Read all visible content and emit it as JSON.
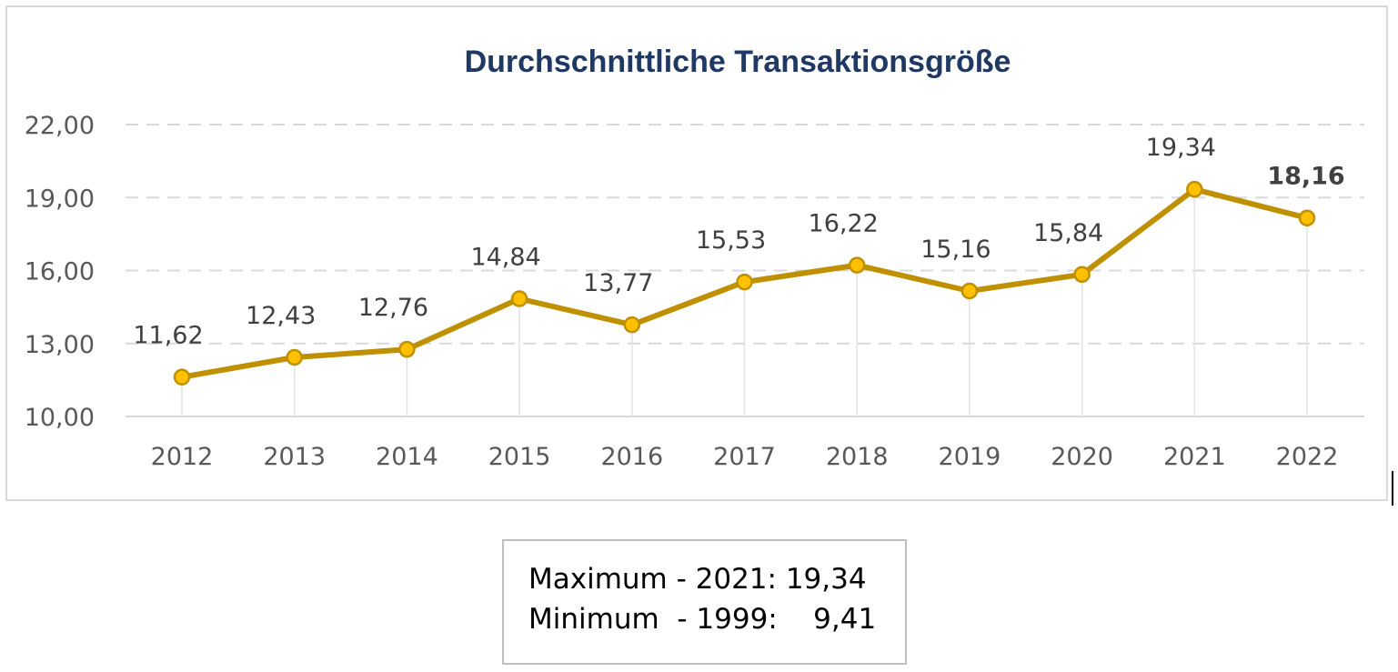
{
  "chart_data": {
    "type": "line",
    "title": "Durchschnittliche Transaktionsgröße",
    "categories": [
      "2012",
      "2013",
      "2014",
      "2015",
      "2016",
      "2017",
      "2018",
      "2019",
      "2020",
      "2021",
      "2022"
    ],
    "values": [
      11.62,
      12.43,
      12.76,
      14.84,
      13.77,
      15.53,
      16.22,
      15.16,
      15.84,
      19.34,
      18.16
    ],
    "data_labels": [
      "11,62",
      "12,43",
      "12,76",
      "14,84",
      "13,77",
      "15,53",
      "16,22",
      "15,16",
      "15,84",
      "19,34",
      "18,16"
    ],
    "highlighted_label_index": 10,
    "y_ticks": [
      "10,00",
      "13,00",
      "16,00",
      "19,00",
      "22,00"
    ],
    "y_tick_values": [
      10,
      13,
      16,
      19,
      22
    ],
    "ylim": [
      10,
      22
    ],
    "grid": "horizontal dashed",
    "line_color": "#bf9000",
    "marker_color": "#ffc000",
    "title_color": "#1f3864"
  },
  "stats": {
    "max_line": "Maximum - 2021: 19,34",
    "min_line": "Minimum  - 1999:    9,41"
  }
}
